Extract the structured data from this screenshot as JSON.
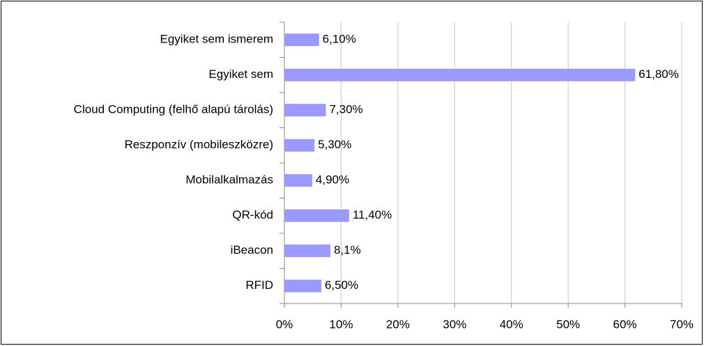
{
  "chart_data": {
    "type": "bar",
    "orientation": "horizontal",
    "categories": [
      "Egyiket sem ismerem",
      "Egyiket sem",
      "Cloud Computing (felhő alapú tárolás)",
      "Reszponzív (mobileszközre)",
      "Mobilalkalmazás",
      "QR-kód",
      "iBeacon",
      "RFID"
    ],
    "values": [
      6.1,
      61.8,
      7.3,
      5.3,
      4.9,
      11.4,
      8.1,
      6.5
    ],
    "value_labels": [
      "6,10%",
      "61,80%",
      "7,30%",
      "5,30%",
      "4,90%",
      "11,40%",
      "8,1%",
      "6,50%"
    ],
    "color": "#9999ff",
    "xlim": [
      0,
      70
    ],
    "xticks": [
      {
        "value": 0,
        "label": "0%"
      },
      {
        "value": 10,
        "label": "10%"
      },
      {
        "value": 20,
        "label": "20%"
      },
      {
        "value": 30,
        "label": "30%"
      },
      {
        "value": 40,
        "label": "40%"
      },
      {
        "value": 50,
        "label": "50%"
      },
      {
        "value": 60,
        "label": "60%"
      },
      {
        "value": 70,
        "label": "70%"
      }
    ],
    "grid": true
  }
}
